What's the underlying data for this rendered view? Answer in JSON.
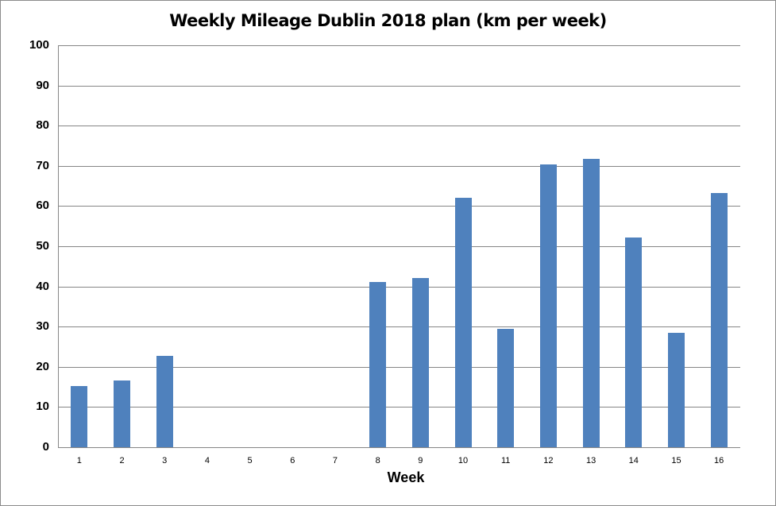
{
  "chart_data": {
    "type": "bar",
    "title": "Weekly Mileage Dublin 2018 plan (km per week)",
    "xlabel": "Week",
    "ylabel": "",
    "ylim": [
      0,
      100
    ],
    "yticks": [
      0,
      10,
      20,
      30,
      40,
      50,
      60,
      70,
      80,
      90,
      100
    ],
    "grid": true,
    "legend": "none",
    "color": "#4f81bd",
    "categories": [
      "1",
      "2",
      "3",
      "4",
      "5",
      "6",
      "7",
      "8",
      "9",
      "10",
      "11",
      "12",
      "13",
      "14",
      "15",
      "16"
    ],
    "values": [
      15.2,
      16.6,
      22.7,
      0,
      0,
      0,
      0,
      41.1,
      42.1,
      62.0,
      29.4,
      70.4,
      71.7,
      52.2,
      28.5,
      63.2
    ]
  }
}
